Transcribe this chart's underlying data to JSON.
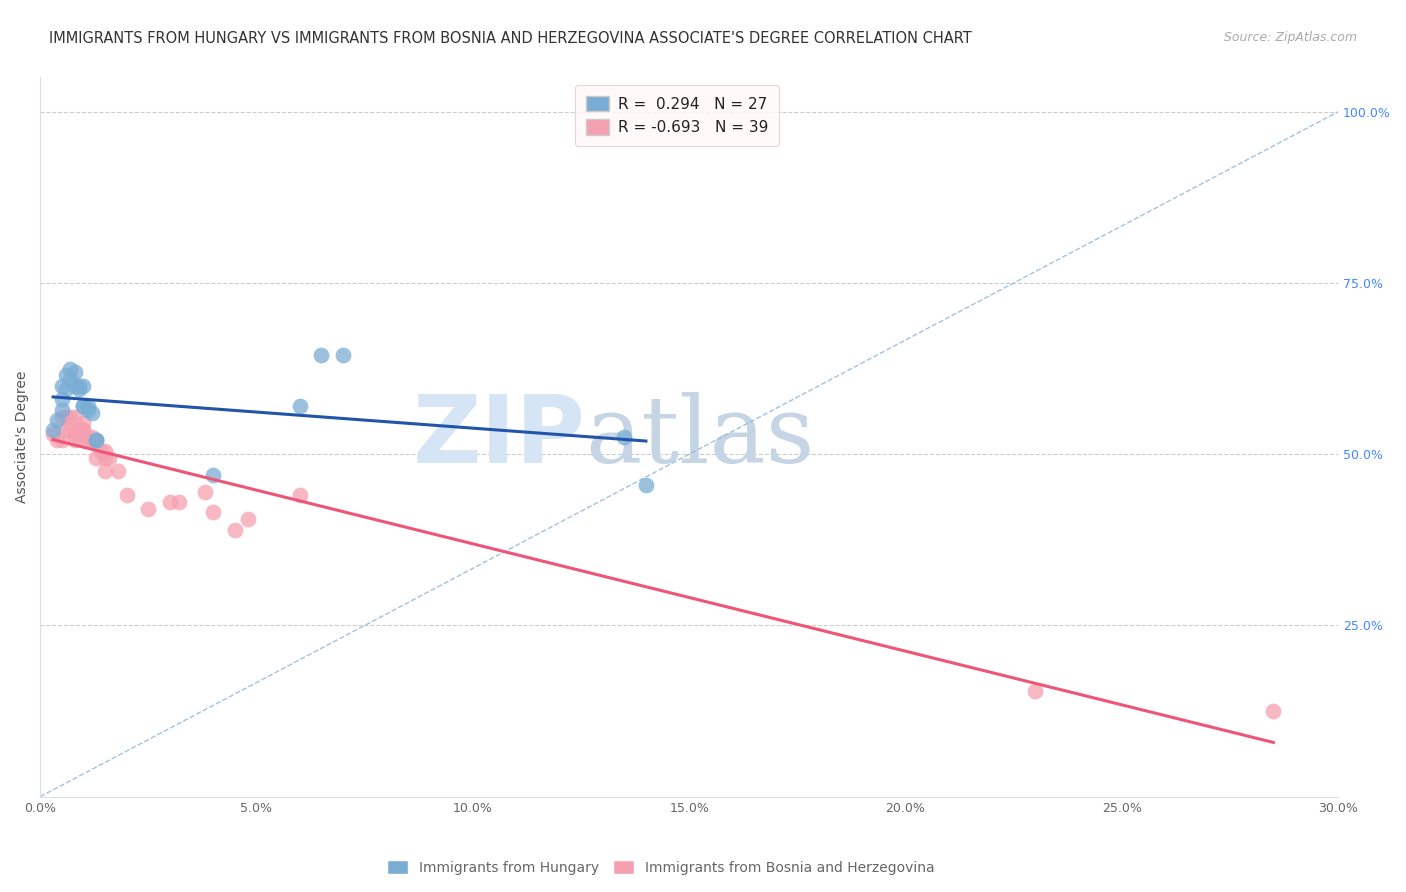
{
  "title": "IMMIGRANTS FROM HUNGARY VS IMMIGRANTS FROM BOSNIA AND HERZEGOVINA ASSOCIATE'S DEGREE CORRELATION CHART",
  "source_text": "Source: ZipAtlas.com",
  "ylabel": "Associate's Degree",
  "xlim": [
    0.0,
    0.3
  ],
  "ylim": [
    0.0,
    1.05
  ],
  "xtick_labels": [
    "0.0%",
    "5.0%",
    "10.0%",
    "15.0%",
    "20.0%",
    "25.0%",
    "30.0%"
  ],
  "xtick_values": [
    0.0,
    0.05,
    0.1,
    0.15,
    0.2,
    0.25,
    0.3
  ],
  "ytick_labels_right": [
    "25.0%",
    "50.0%",
    "75.0%",
    "100.0%"
  ],
  "ytick_values_right": [
    0.25,
    0.5,
    0.75,
    1.0
  ],
  "R_hungary": 0.294,
  "N_hungary": 27,
  "R_bosnia": -0.693,
  "N_bosnia": 39,
  "hungary_color": "#7aadd4",
  "bosnia_color": "#f5a0b0",
  "hungary_line_color": "#2255aa",
  "bosnia_line_color": "#ee5577",
  "diagonal_color": "#99bbdd",
  "watermark_zip_color": "#d0dff0",
  "watermark_atlas_color": "#c8d8e8",
  "hungary_x": [
    0.003,
    0.004,
    0.005,
    0.005,
    0.005,
    0.006,
    0.006,
    0.007,
    0.007,
    0.008,
    0.008,
    0.009,
    0.009,
    0.01,
    0.01,
    0.01,
    0.011,
    0.011,
    0.012,
    0.013,
    0.013,
    0.04,
    0.06,
    0.065,
    0.07,
    0.135,
    0.14
  ],
  "hungary_y": [
    0.535,
    0.55,
    0.565,
    0.58,
    0.6,
    0.595,
    0.615,
    0.61,
    0.625,
    0.6,
    0.62,
    0.595,
    0.6,
    0.57,
    0.57,
    0.6,
    0.565,
    0.57,
    0.56,
    0.52,
    0.52,
    0.47,
    0.57,
    0.645,
    0.645,
    0.525,
    0.455
  ],
  "bosnia_x": [
    0.003,
    0.004,
    0.005,
    0.005,
    0.006,
    0.006,
    0.007,
    0.007,
    0.008,
    0.008,
    0.008,
    0.009,
    0.009,
    0.01,
    0.01,
    0.01,
    0.011,
    0.011,
    0.012,
    0.012,
    0.013,
    0.013,
    0.014,
    0.015,
    0.015,
    0.015,
    0.016,
    0.018,
    0.02,
    0.025,
    0.03,
    0.032,
    0.038,
    0.04,
    0.045,
    0.048,
    0.06,
    0.23,
    0.285
  ],
  "bosnia_y": [
    0.53,
    0.52,
    0.52,
    0.555,
    0.535,
    0.555,
    0.535,
    0.555,
    0.52,
    0.53,
    0.555,
    0.535,
    0.525,
    0.535,
    0.545,
    0.535,
    0.52,
    0.525,
    0.52,
    0.525,
    0.52,
    0.495,
    0.505,
    0.475,
    0.495,
    0.505,
    0.495,
    0.475,
    0.44,
    0.42,
    0.43,
    0.43,
    0.445,
    0.415,
    0.39,
    0.405,
    0.44,
    0.155,
    0.125
  ],
  "title_fontsize": 10.5,
  "axis_label_fontsize": 10,
  "tick_fontsize": 9,
  "legend_fontsize": 11,
  "source_fontsize": 9
}
